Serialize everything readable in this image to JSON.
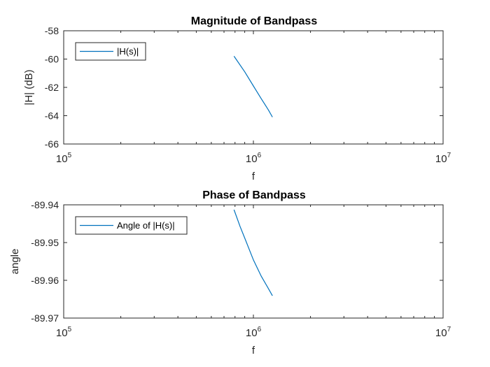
{
  "figure": {
    "background": "#ffffff",
    "axis_color": "#262626",
    "line_color": "#0072BD"
  },
  "chart_data": [
    {
      "type": "line",
      "title": "Magnitude of Bandpass",
      "xlabel": "f",
      "ylabel": "|H| (dB)",
      "xscale": "log",
      "xlim": [
        100000,
        10000000
      ],
      "ylim": [
        -66,
        -58
      ],
      "xticks": [
        {
          "base": "10",
          "exp": "5"
        },
        {
          "base": "10",
          "exp": "6"
        },
        {
          "base": "10",
          "exp": "7"
        }
      ],
      "yticks": [
        "-66",
        "-64",
        "-62",
        "-60",
        "-58"
      ],
      "ytick_values": [
        -66,
        -64,
        -62,
        -60,
        -58
      ],
      "legend": {
        "location": "top-left",
        "entries": [
          "|H(s)|"
        ]
      },
      "series": [
        {
          "name": "|H(s)|",
          "x": [
            790000,
            900000,
            1000000,
            1100000,
            1200000,
            1260000
          ],
          "y": [
            -59.8,
            -60.9,
            -61.9,
            -62.8,
            -63.6,
            -64.1
          ]
        }
      ]
    },
    {
      "type": "line",
      "title": "Phase of Bandpass",
      "xlabel": "f",
      "ylabel": "angle",
      "xscale": "log",
      "xlim": [
        100000,
        10000000
      ],
      "ylim": [
        -89.97,
        -89.94
      ],
      "xticks": [
        {
          "base": "10",
          "exp": "5"
        },
        {
          "base": "10",
          "exp": "6"
        },
        {
          "base": "10",
          "exp": "7"
        }
      ],
      "yticks": [
        "-89.97",
        "-89.96",
        "-89.95",
        "-89.94"
      ],
      "ytick_values": [
        -89.97,
        -89.96,
        -89.95,
        -89.94
      ],
      "legend": {
        "location": "top-left",
        "entries": [
          "Angle of |H(s)|"
        ]
      },
      "series": [
        {
          "name": "Angle of |H(s)|",
          "x": [
            790000,
            850000,
            900000,
            1000000,
            1100000,
            1200000,
            1260000
          ],
          "y": [
            -89.9413,
            -89.9457,
            -89.9488,
            -89.9546,
            -89.9589,
            -89.9622,
            -89.9641
          ]
        }
      ]
    }
  ]
}
